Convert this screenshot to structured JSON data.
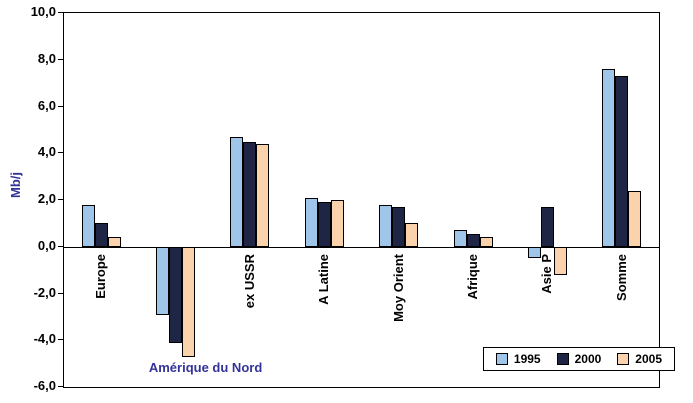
{
  "chart_data": {
    "type": "bar",
    "title": "",
    "xlabel": "",
    "ylabel": "Mb/j",
    "ylim": [
      -6,
      10
    ],
    "ytick_values": [
      10,
      8,
      6,
      4,
      2,
      0,
      -2,
      -4,
      -6
    ],
    "ytick_labels": [
      "10,0",
      "8,0",
      "6,0",
      "4,0",
      "2,0",
      "0,0",
      "-2,0",
      "-4,0",
      "-6,0"
    ],
    "grid": false,
    "legend_position": "bottom-right-inside",
    "categories": [
      "Europe",
      "Amérique du Nord",
      "ex USSR",
      "A Latine",
      "Moy Orient",
      "Afrique",
      "Asie P",
      "Somme"
    ],
    "category_label_orientation": [
      "vertical",
      "horizontal",
      "vertical",
      "vertical",
      "vertical",
      "vertical",
      "vertical",
      "vertical"
    ],
    "series": [
      {
        "name": "1995",
        "color": "#9FC5E8",
        "values": [
          1.8,
          -2.9,
          4.7,
          2.1,
          1.8,
          0.7,
          -0.5,
          7.6
        ]
      },
      {
        "name": "2000",
        "color": "#1F2544",
        "values": [
          1.0,
          -4.1,
          4.5,
          1.9,
          1.7,
          0.55,
          1.7,
          7.3
        ]
      },
      {
        "name": "2005",
        "color": "#FAD2AC",
        "values": [
          0.4,
          -4.7,
          4.4,
          2.0,
          1.0,
          0.4,
          -1.2,
          2.4
        ]
      }
    ]
  }
}
